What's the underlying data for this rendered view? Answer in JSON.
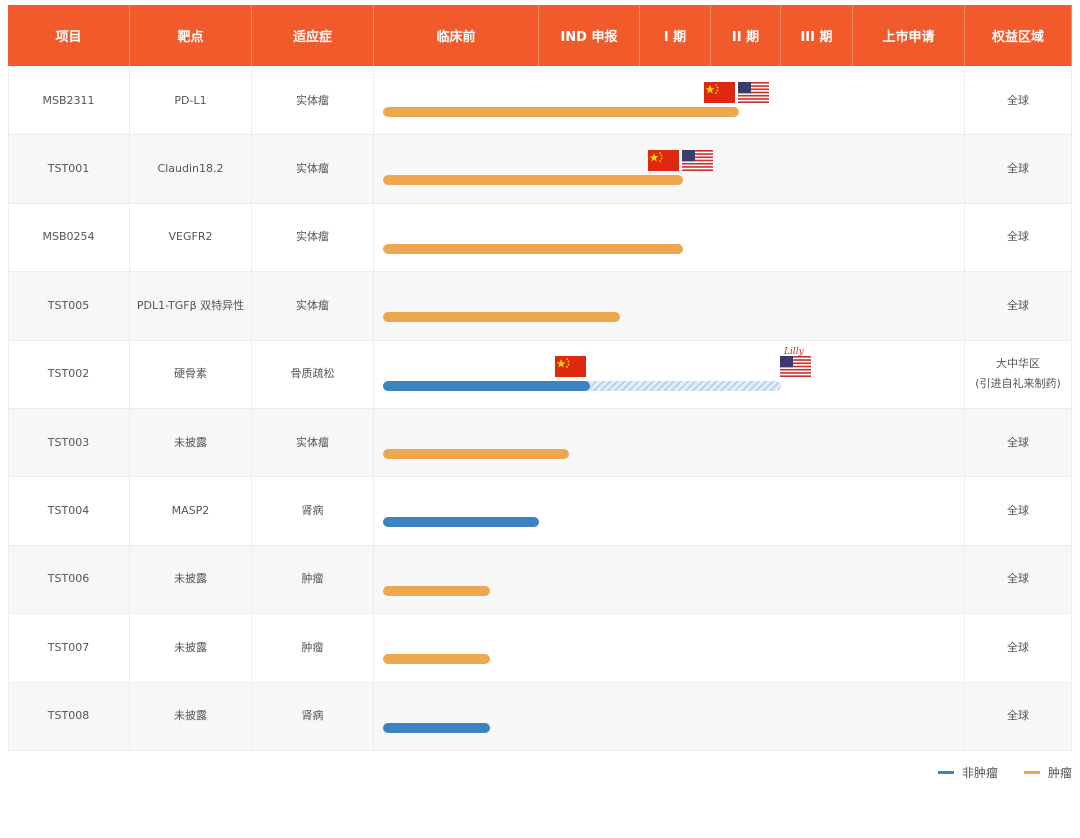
{
  "header": [
    "项目",
    "靶点",
    "适应症",
    "临床前",
    "IND 申报",
    "I 期",
    "II 期",
    "III 期",
    "上市申请",
    "权益区域"
  ],
  "rows": [
    {
      "id": "MSB2311",
      "target": "PD-L1",
      "indication": "实体瘤",
      "progress": 3.4,
      "color": "#eda84f",
      "region": "全球"
    },
    {
      "id": "TST001",
      "target": "Claudin18.2",
      "indication": "实体瘤",
      "progress": 2.6,
      "color": "#eda84f",
      "region": "全球"
    },
    {
      "id": "MSB0254",
      "target": "VEGFR2",
      "indication": "实体瘤",
      "progress": 2.6,
      "color": "#eda84f",
      "region": "全球"
    },
    {
      "id": "TST005",
      "target": "PDL1-TGFβ 双特异性",
      "indication": "实体瘤",
      "progress": 1.8,
      "color": "#eda84f",
      "region": "全球"
    },
    {
      "id": "TST002",
      "target": "硬骨素",
      "indication": "骨质疏松",
      "progress": 1.5,
      "planned": 4.0,
      "color": "#3d82c1",
      "region": "大中华区",
      "region_note": "(引进自礼来制药)",
      "partner_logo": "Lilly"
    },
    {
      "id": "TST003",
      "target": "未披露",
      "indication": "实体瘤",
      "progress": 1.3,
      "color": "#eda84f",
      "region": "全球"
    },
    {
      "id": "TST004",
      "target": "MASP2",
      "indication": "肾病",
      "progress": 1.0,
      "color": "#3d82c1",
      "region": "全球"
    },
    {
      "id": "TST006",
      "target": "未披露",
      "indication": "肿瘤",
      "progress": 0.7,
      "color": "#eda84f",
      "region": "全球"
    },
    {
      "id": "TST007",
      "target": "未披露",
      "indication": "肿瘤",
      "progress": 0.7,
      "color": "#eda84f",
      "region": "全球"
    },
    {
      "id": "TST008",
      "target": "未披露",
      "indication": "肾病",
      "progress": 0.7,
      "color": "#3d82c1",
      "region": "全球"
    }
  ],
  "legend": [
    {
      "name": "非肿瘤",
      "color": "#3d82c1"
    },
    {
      "name": "肿瘤",
      "color": "#eda84f"
    }
  ]
}
